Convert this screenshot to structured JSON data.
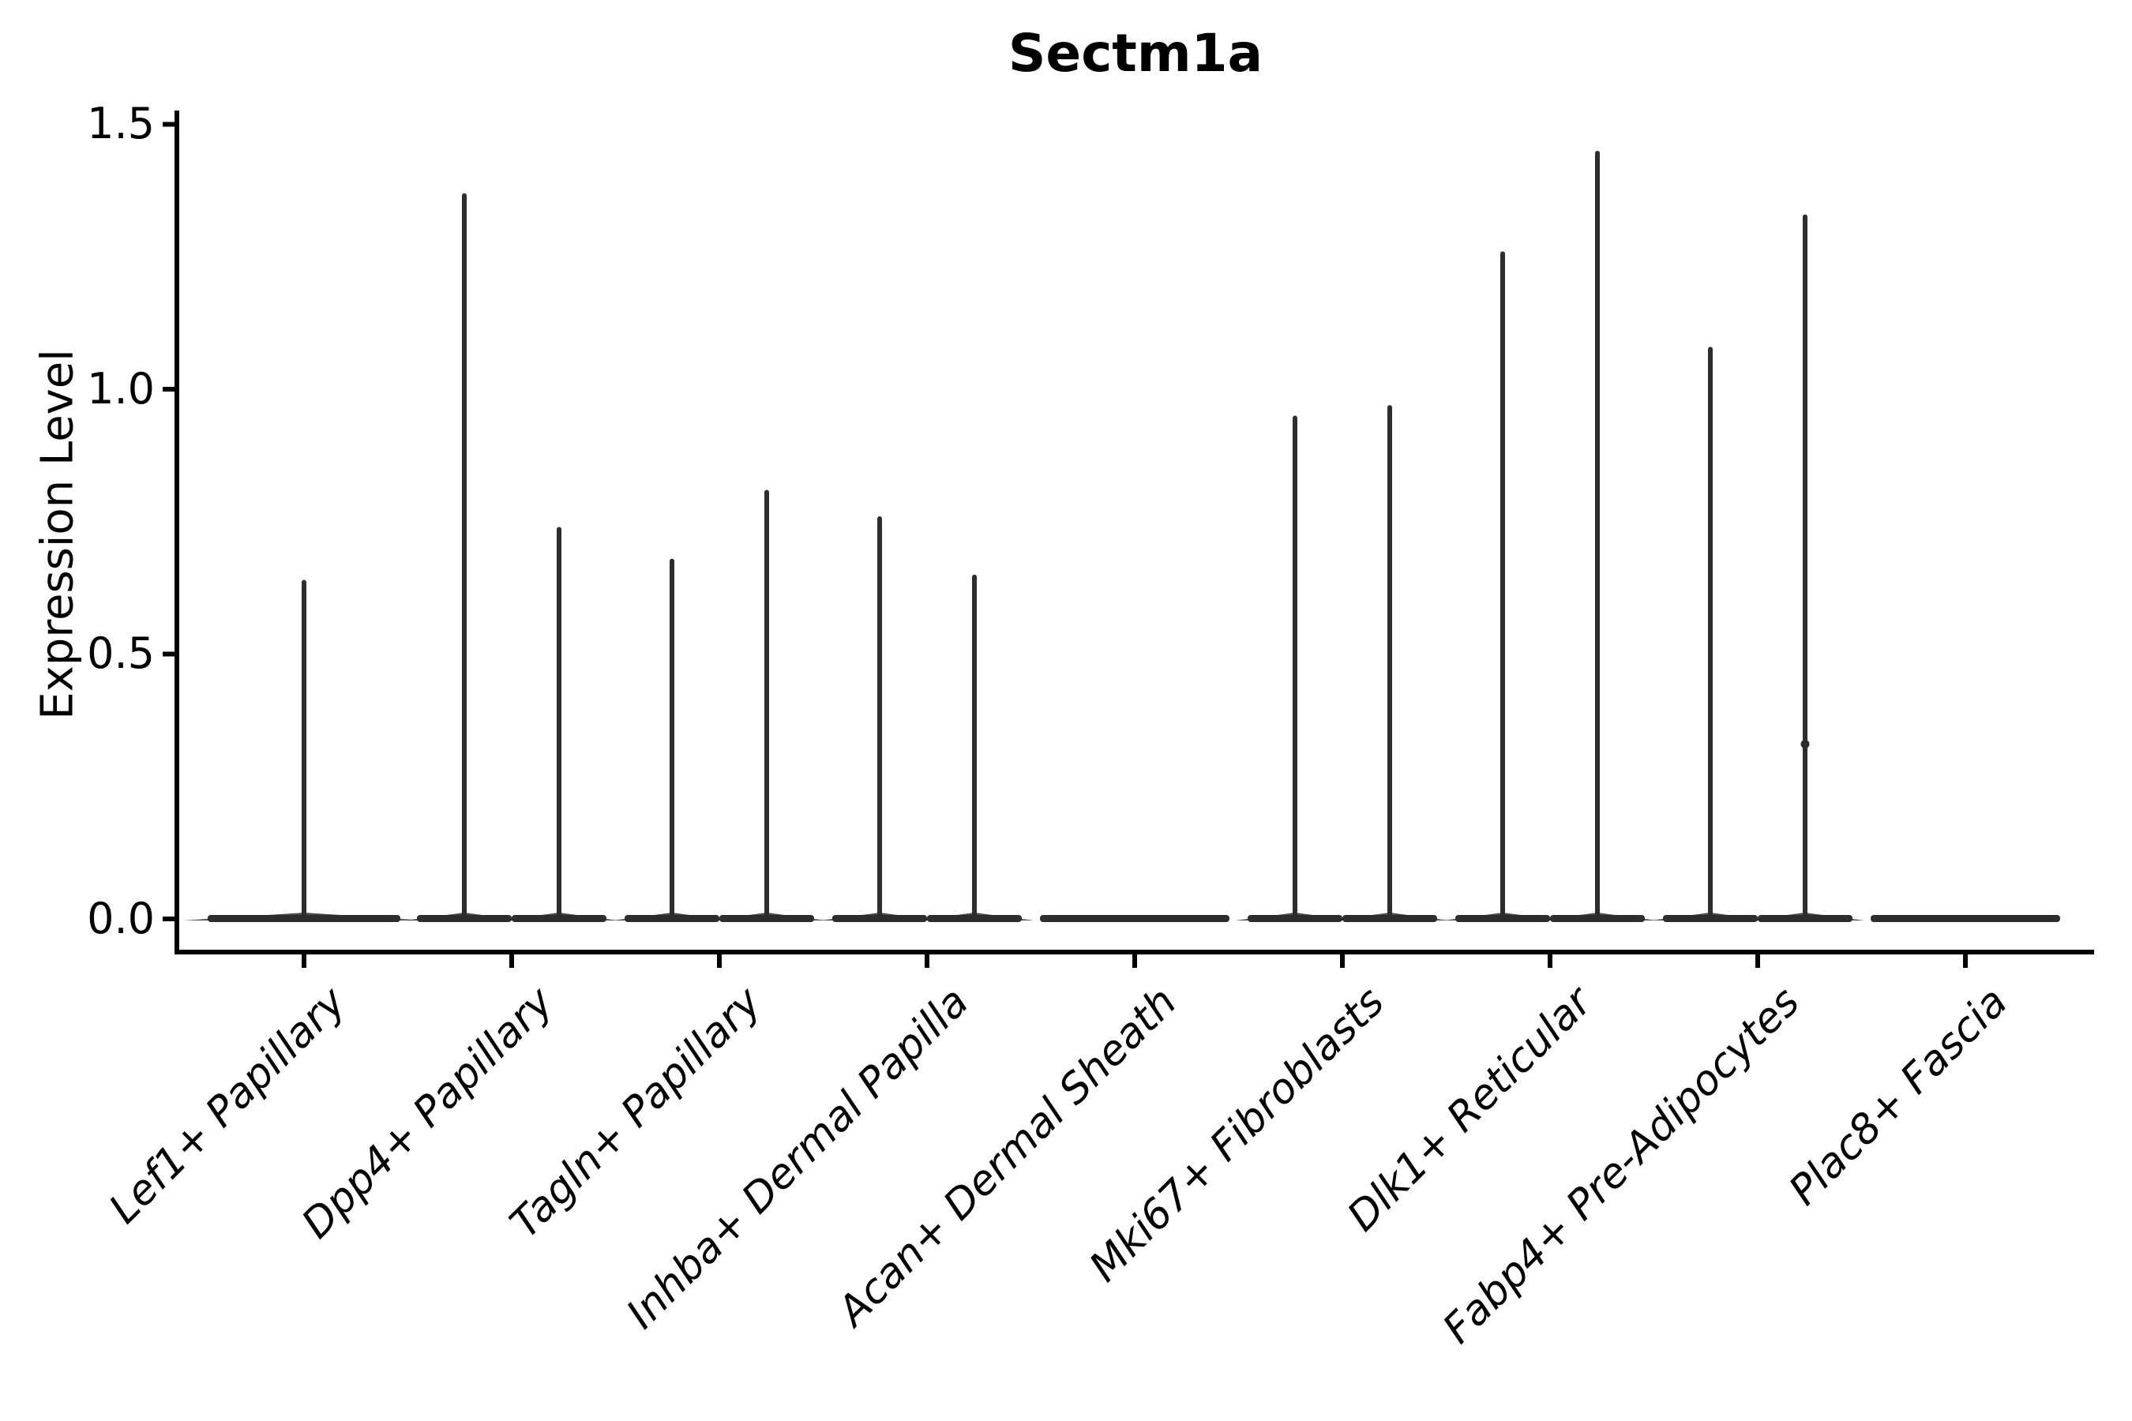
{
  "chart_data": {
    "type": "violin",
    "title": "Sectm1a",
    "xlabel": "",
    "ylabel": "Expression Level",
    "ylim": [
      0,
      1.5
    ],
    "y_ticks": [
      "0.0",
      "0.5",
      "1.0",
      "1.5"
    ],
    "grid": "off",
    "legend": "none",
    "style": {
      "violin_color": "#2d2d2d",
      "axis_color": "#000000",
      "background": "#ffffff"
    },
    "categories": [
      "Lef1+ Papillary",
      "Dpp4+ Papillary",
      "Tagln+ Papillary",
      "Inhba+ Dermal Papilla",
      "Acan+ Dermal Sheath",
      "Mki67+ Fibroblasts",
      "Dlk1+ Reticular",
      "Fabp4+ Pre-Adipocytes",
      "Plac8+ Fascia"
    ],
    "violins": [
      {
        "category": "Lef1+ Papillary",
        "groups": [
          {
            "position": "center",
            "max": 0.64
          }
        ]
      },
      {
        "category": "Dpp4+ Papillary",
        "groups": [
          {
            "position": "left",
            "max": 1.37
          },
          {
            "position": "right",
            "max": 0.74
          }
        ]
      },
      {
        "category": "Tagln+ Papillary",
        "groups": [
          {
            "position": "left",
            "max": 0.68
          },
          {
            "position": "right",
            "max": 0.81
          }
        ]
      },
      {
        "category": "Inhba+ Dermal Papilla",
        "groups": [
          {
            "position": "left",
            "max": 0.76
          },
          {
            "position": "right",
            "max": 0.65
          }
        ]
      },
      {
        "category": "Acan+ Dermal Sheath",
        "groups": []
      },
      {
        "category": "Mki67+ Fibroblasts",
        "groups": [
          {
            "position": "left",
            "max": 0.95
          },
          {
            "position": "right",
            "max": 0.97
          }
        ]
      },
      {
        "category": "Dlk1+ Reticular",
        "groups": [
          {
            "position": "left",
            "max": 1.26
          },
          {
            "position": "right",
            "max": 1.45
          }
        ]
      },
      {
        "category": "Fabp4+ Pre-Adipocytes",
        "groups": [
          {
            "position": "left",
            "max": 1.08
          },
          {
            "position": "right",
            "max": 1.33,
            "point": 0.33
          }
        ]
      },
      {
        "category": "Plac8+ Fascia",
        "groups": []
      }
    ],
    "notes": "All violins are flat at 0 expression with thin spikes to the listed max values; single jitter point at 0.33 on right spike of Fabp4+ Pre-Adipocytes."
  }
}
